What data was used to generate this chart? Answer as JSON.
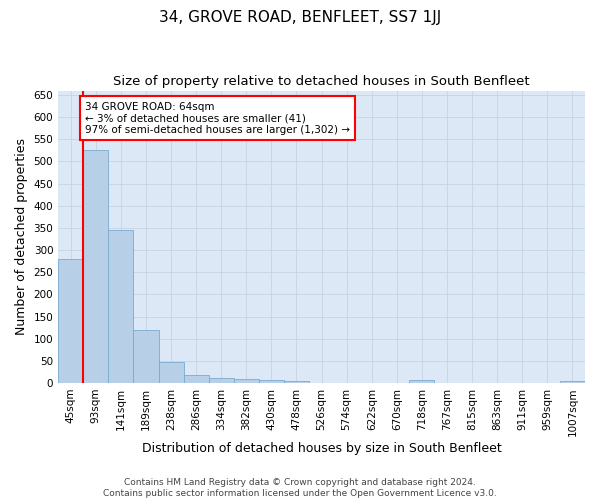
{
  "title": "34, GROVE ROAD, BENFLEET, SS7 1JJ",
  "subtitle": "Size of property relative to detached houses in South Benfleet",
  "xlabel": "Distribution of detached houses by size in South Benfleet",
  "ylabel": "Number of detached properties",
  "footer_line1": "Contains HM Land Registry data © Crown copyright and database right 2024.",
  "footer_line2": "Contains public sector information licensed under the Open Government Licence v3.0.",
  "categories": [
    "45sqm",
    "93sqm",
    "141sqm",
    "189sqm",
    "238sqm",
    "286sqm",
    "334sqm",
    "382sqm",
    "430sqm",
    "478sqm",
    "526sqm",
    "574sqm",
    "622sqm",
    "670sqm",
    "718sqm",
    "767sqm",
    "815sqm",
    "863sqm",
    "911sqm",
    "959sqm",
    "1007sqm"
  ],
  "values": [
    280,
    525,
    345,
    120,
    48,
    18,
    12,
    9,
    6,
    4,
    0,
    0,
    0,
    0,
    6,
    0,
    0,
    0,
    0,
    0,
    5
  ],
  "bar_color": "#b8cfe8",
  "bar_edge_color": "#7aaad0",
  "vline_color": "red",
  "vline_x": 0.5,
  "annotation_title": "34 GROVE ROAD: 64sqm",
  "annotation_line2": "← 3% of detached houses are smaller (41)",
  "annotation_line3": "97% of semi-detached houses are larger (1,302) →",
  "ylim": [
    0,
    660
  ],
  "yticks": [
    0,
    50,
    100,
    150,
    200,
    250,
    300,
    350,
    400,
    450,
    500,
    550,
    600,
    650
  ],
  "bg_color": "#ffffff",
  "plot_bg_color": "#dce8f5",
  "grid_color": "#c0d0e0",
  "title_fontsize": 11,
  "subtitle_fontsize": 9.5,
  "axis_label_fontsize": 9,
  "tick_fontsize": 7.5,
  "footer_fontsize": 6.5,
  "annotation_fontsize": 7.5
}
